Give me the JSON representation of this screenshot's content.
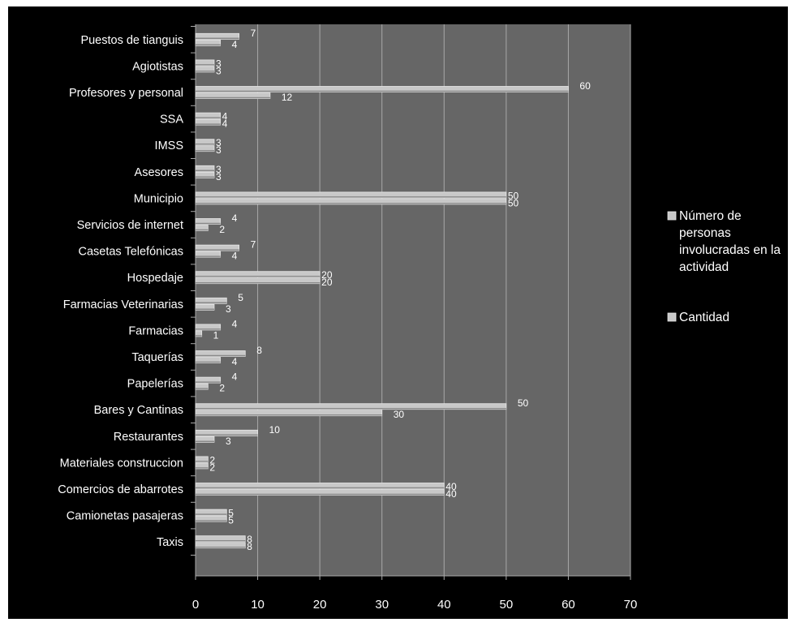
{
  "chart_data": {
    "type": "bar",
    "orientation": "horizontal",
    "categories": [
      "Taxis",
      "Camionetas pasajeras",
      "Comercios de abarrotes",
      "Materiales construccion",
      "Restaurantes",
      "Bares y Cantinas",
      "Papelerías",
      "Taquerías",
      "Farmacias",
      "Farmacias Veterinarias",
      "Hospedaje",
      "Casetas Telefónicas",
      "Servicios de internet",
      "Municipio",
      "Asesores",
      "IMSS",
      "SSA",
      "Profesores y personal",
      "Agiotistas",
      "Puestos de tianguis"
    ],
    "series": [
      {
        "name": "Número de personas involucradas en la actividad",
        "values": [
          8,
          5,
          40,
          2,
          10,
          50,
          4,
          8,
          4,
          5,
          20,
          7,
          4,
          50,
          3,
          3,
          4,
          60,
          3,
          7
        ]
      },
      {
        "name": "Cantidad",
        "values": [
          8,
          5,
          40,
          2,
          3,
          30,
          2,
          4,
          1,
          3,
          20,
          4,
          2,
          50,
          3,
          3,
          4,
          12,
          3,
          4
        ]
      }
    ],
    "xlim": [
      0,
      70
    ],
    "xticks": [
      0,
      10,
      20,
      30,
      40,
      50,
      60,
      70
    ],
    "grid": true,
    "legend_position": "right",
    "colors": {
      "background": "#000000",
      "plot_area": "#666666",
      "gridline": "#a8a8a8",
      "bar": "#c8c8c8",
      "bar_edge": "#e8e8e8",
      "bar_shadow": "#8a8a8a",
      "text": "#ffffff"
    }
  },
  "legend": {
    "items": [
      {
        "label": "Número de personas involucradas en la actividad",
        "lines": [
          "Número de",
          "personas",
          "involucradas en la",
          "actividad"
        ]
      },
      {
        "label": "Cantidad",
        "lines": [
          "Cantidad"
        ]
      }
    ]
  }
}
